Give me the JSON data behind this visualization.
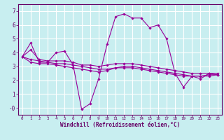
{
  "title": "",
  "xlabel": "Windchill (Refroidissement éolien,°C)",
  "ylabel": "",
  "bg_color": "#c8eef0",
  "grid_color": "#ffffff",
  "line_color": "#990099",
  "xlim": [
    -0.5,
    23.5
  ],
  "ylim": [
    -0.5,
    7.5
  ],
  "yticks": [
    0,
    1,
    2,
    3,
    4,
    5,
    6,
    7
  ],
  "ytick_labels": [
    "-0",
    "1",
    "2",
    "3",
    "4",
    "5",
    "6",
    "7"
  ],
  "xticks": [
    0,
    1,
    2,
    3,
    4,
    5,
    6,
    7,
    8,
    9,
    10,
    11,
    12,
    13,
    14,
    15,
    16,
    17,
    18,
    19,
    20,
    21,
    22,
    23
  ],
  "series": [
    [
      3.7,
      4.7,
      3.3,
      3.3,
      4.0,
      4.1,
      3.1,
      -0.1,
      0.3,
      2.1,
      4.6,
      6.6,
      6.8,
      6.5,
      6.5,
      5.8,
      6.0,
      5.0,
      2.5,
      1.5,
      2.3,
      2.1,
      2.5,
      2.4
    ],
    [
      3.7,
      4.2,
      3.5,
      3.4,
      3.4,
      3.4,
      3.3,
      3.1,
      3.1,
      3.0,
      3.1,
      3.2,
      3.2,
      3.2,
      3.1,
      3.0,
      2.9,
      2.8,
      2.7,
      2.6,
      2.5,
      2.5,
      2.5,
      2.5
    ],
    [
      3.7,
      3.3,
      3.2,
      3.2,
      3.1,
      3.0,
      2.9,
      2.8,
      2.7,
      2.6,
      2.7,
      2.9,
      3.0,
      3.0,
      2.9,
      2.8,
      2.7,
      2.6,
      2.5,
      2.4,
      2.3,
      2.3,
      2.3,
      2.4
    ],
    [
      3.7,
      3.5,
      3.4,
      3.3,
      3.2,
      3.2,
      3.1,
      3.0,
      2.9,
      2.8,
      2.8,
      2.9,
      2.9,
      2.9,
      2.8,
      2.7,
      2.6,
      2.5,
      2.4,
      2.3,
      2.3,
      2.3,
      2.4,
      2.4
    ]
  ],
  "xlabel_fontsize": 5.5,
  "xtick_fontsize": 4.2,
  "ytick_fontsize": 5.5
}
